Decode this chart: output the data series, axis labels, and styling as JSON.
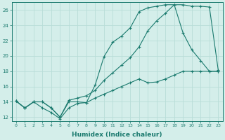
{
  "title": "",
  "xlabel": "Humidex (Indice chaleur)",
  "background_color": "#d4eeea",
  "line_color": "#1a7a6e",
  "grid_color": "#b8ddd8",
  "xlim": [
    -0.5,
    23.5
  ],
  "ylim": [
    11.5,
    27.0
  ],
  "xticks": [
    0,
    1,
    2,
    3,
    4,
    5,
    6,
    7,
    8,
    9,
    10,
    11,
    12,
    13,
    14,
    15,
    16,
    17,
    18,
    19,
    20,
    21,
    22,
    23
  ],
  "yticks": [
    12,
    14,
    16,
    18,
    20,
    22,
    24,
    26
  ],
  "line1_x": [
    0,
    1,
    2,
    3,
    4,
    5,
    6,
    7,
    8,
    9,
    10,
    11,
    12,
    13,
    14,
    15,
    16,
    17,
    18,
    19,
    20,
    21,
    22,
    23
  ],
  "line1_y": [
    14.1,
    13.2,
    14.0,
    14.0,
    13.2,
    12.0,
    14.0,
    14.0,
    13.9,
    16.2,
    19.9,
    21.8,
    22.6,
    23.7,
    25.8,
    26.3,
    26.5,
    26.7,
    26.7,
    23.0,
    20.8,
    19.4,
    18.0,
    18.0
  ],
  "line2_x": [
    0,
    1,
    2,
    3,
    4,
    5,
    6,
    7,
    8,
    9,
    10,
    11,
    12,
    13,
    14,
    15,
    16,
    17,
    18,
    19,
    20,
    21,
    22,
    23
  ],
  "line2_y": [
    14.1,
    13.2,
    14.0,
    13.2,
    12.6,
    11.8,
    13.2,
    13.8,
    13.9,
    14.5,
    15.0,
    15.5,
    16.0,
    16.5,
    17.0,
    16.5,
    16.6,
    17.0,
    17.5,
    18.0,
    18.0,
    18.0,
    18.0,
    18.0
  ],
  "line3_x": [
    0,
    1,
    2,
    3,
    4,
    5,
    6,
    7,
    8,
    9,
    10,
    11,
    12,
    13,
    14,
    15,
    16,
    17,
    18,
    19,
    20,
    21,
    22,
    23
  ],
  "line3_y": [
    14.1,
    13.2,
    14.0,
    14.0,
    13.2,
    12.0,
    14.2,
    14.5,
    14.8,
    15.5,
    16.8,
    17.8,
    18.8,
    19.8,
    21.2,
    23.3,
    24.6,
    25.6,
    26.7,
    26.7,
    26.5,
    26.5,
    26.4,
    18.2
  ]
}
